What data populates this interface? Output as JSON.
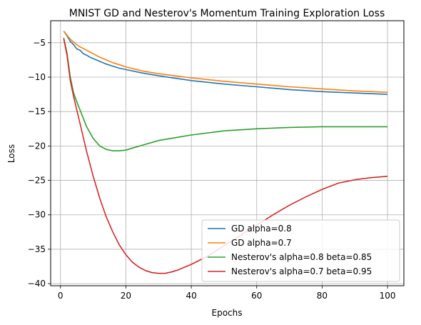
{
  "chart_data": {
    "type": "line",
    "title": "MNIST GD and Nesterov's Momentum Training Exploration Loss",
    "xlabel": "Epochs",
    "ylabel": "Loss",
    "xlim": [
      -3,
      105
    ],
    "ylim": [
      -40.3,
      -1.8
    ],
    "xticks": [
      0,
      20,
      40,
      60,
      80,
      100
    ],
    "yticks": [
      -5,
      -10,
      -15,
      -20,
      -25,
      -30,
      -35,
      -40
    ],
    "grid": true,
    "legend_position": "lower-right",
    "series": [
      {
        "name": "GD alpha=0.8",
        "color": "#1f77b4",
        "x": [
          1,
          2,
          3,
          4,
          5,
          6,
          7,
          8,
          9,
          10,
          12,
          14,
          16,
          18,
          20,
          25,
          30,
          40,
          50,
          60,
          70,
          80,
          90,
          100
        ],
        "y": [
          -3.3,
          -4.0,
          -4.8,
          -5.3,
          -5.9,
          -6.1,
          -6.6,
          -6.8,
          -7.1,
          -7.3,
          -7.7,
          -8.1,
          -8.4,
          -8.7,
          -8.9,
          -9.4,
          -9.8,
          -10.5,
          -11.0,
          -11.4,
          -11.8,
          -12.1,
          -12.3,
          -12.5
        ]
      },
      {
        "name": "GD alpha=0.7",
        "color": "#ff7f0e",
        "x": [
          1,
          2,
          3,
          4,
          5,
          6,
          8,
          10,
          12,
          14,
          16,
          18,
          20,
          25,
          30,
          40,
          50,
          60,
          70,
          80,
          90,
          100
        ],
        "y": [
          -3.3,
          -3.9,
          -4.5,
          -4.9,
          -5.3,
          -5.6,
          -6.1,
          -6.6,
          -7.1,
          -7.5,
          -7.9,
          -8.2,
          -8.5,
          -9.1,
          -9.5,
          -10.1,
          -10.6,
          -11.0,
          -11.4,
          -11.7,
          -12.0,
          -12.2
        ]
      },
      {
        "name": "Nesterov's alpha=0.8 beta=0.85",
        "color": "#2ca02c",
        "x": [
          1,
          2,
          3,
          4,
          5,
          6,
          7,
          8,
          10,
          12,
          14,
          16,
          18,
          20,
          22,
          25,
          30,
          35,
          40,
          50,
          60,
          70,
          80,
          90,
          100
        ],
        "y": [
          -4.3,
          -6.5,
          -10.0,
          -12.3,
          -13.6,
          -14.8,
          -16.0,
          -17.2,
          -18.9,
          -20.0,
          -20.5,
          -20.7,
          -20.7,
          -20.6,
          -20.3,
          -19.9,
          -19.2,
          -18.8,
          -18.4,
          -17.8,
          -17.5,
          -17.3,
          -17.2,
          -17.2,
          -17.2
        ]
      },
      {
        "name": "Nesterov's alpha=0.7 beta=0.95",
        "color": "#d62728",
        "x": [
          1,
          2,
          3,
          4,
          5,
          6,
          8,
          10,
          12,
          14,
          16,
          18,
          20,
          22,
          24,
          26,
          28,
          30,
          32,
          34,
          36,
          40,
          45,
          50,
          55,
          60,
          65,
          70,
          75,
          80,
          85,
          90,
          95,
          100
        ],
        "y": [
          -4.4,
          -6.8,
          -10.5,
          -12.8,
          -14.8,
          -16.8,
          -20.8,
          -24.4,
          -27.6,
          -30.3,
          -32.5,
          -34.4,
          -35.8,
          -36.9,
          -37.6,
          -38.1,
          -38.4,
          -38.5,
          -38.5,
          -38.3,
          -38.0,
          -37.2,
          -36.0,
          -34.5,
          -33.0,
          -31.5,
          -30.0,
          -28.6,
          -27.4,
          -26.3,
          -25.4,
          -24.9,
          -24.6,
          -24.4
        ]
      }
    ]
  }
}
